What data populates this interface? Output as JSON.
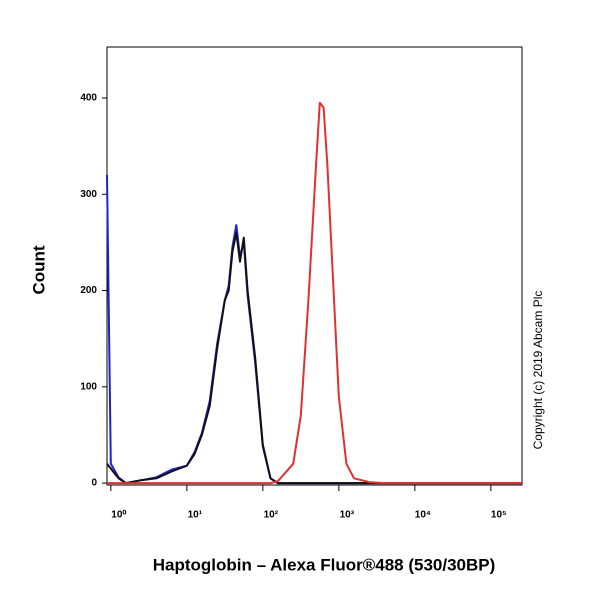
{
  "chart_data": {
    "type": "line",
    "x_label": "Haptoglobin – Alexa Fluor®488 (530/30BP)",
    "y_label": "Count",
    "annotation": "Copyright (c) 2019 Abcam Plc",
    "x_log": true,
    "xlim": [
      0.89,
      257000
    ],
    "xticks": [
      {
        "value": 1,
        "label": "10⁰"
      },
      {
        "value": 10,
        "label": "10¹"
      },
      {
        "value": 100,
        "label": "10²"
      },
      {
        "value": 1000,
        "label": "10³"
      },
      {
        "value": 10000,
        "label": "10⁴"
      },
      {
        "value": 100000,
        "label": "10⁵"
      }
    ],
    "ylim": [
      -2,
      453
    ],
    "yticks": [
      {
        "value": 0,
        "label": "0"
      },
      100,
      200,
      300,
      400
    ],
    "x": [
      0.89,
      1,
      1.26,
      1.58,
      2.51,
      3.98,
      6.31,
      10,
      12.6,
      15.8,
      20,
      25.1,
      31.6,
      35.5,
      39.8,
      44.7,
      50.1,
      56.2,
      63.1,
      79.4,
      100,
      126,
      158,
      251,
      316,
      398,
      501,
      562,
      631,
      708,
      794,
      1000,
      1259,
      1585,
      2512,
      3981,
      10000,
      31623,
      100000,
      257000
    ],
    "series": [
      {
        "color": "#2020d0",
        "values": [
          320,
          20,
          6,
          0,
          3,
          6,
          14,
          18,
          32,
          52,
          85,
          145,
          190,
          205,
          245,
          268,
          235,
          250,
          195,
          125,
          38,
          5,
          0,
          0,
          0,
          0,
          0,
          0,
          0,
          0,
          0,
          0,
          0,
          0,
          0,
          0,
          0,
          0,
          0,
          0
        ]
      },
      {
        "color": "#111111",
        "values": [
          20,
          15,
          5,
          0,
          3,
          5,
          12,
          18,
          30,
          50,
          80,
          140,
          190,
          200,
          240,
          260,
          230,
          255,
          200,
          130,
          40,
          5,
          0,
          0,
          0,
          0,
          0,
          0,
          0,
          0,
          0,
          0,
          0,
          0,
          0,
          0,
          0,
          0,
          0,
          0
        ]
      },
      {
        "color": "#e03030",
        "values": [
          0,
          0,
          0,
          0,
          0,
          0,
          0,
          0,
          0,
          0,
          0,
          0,
          0,
          0,
          0,
          0,
          0,
          0,
          0,
          0,
          0,
          0,
          2,
          20,
          70,
          190,
          330,
          395,
          390,
          330,
          250,
          90,
          20,
          5,
          1,
          0,
          0,
          0,
          0,
          0
        ]
      }
    ]
  }
}
